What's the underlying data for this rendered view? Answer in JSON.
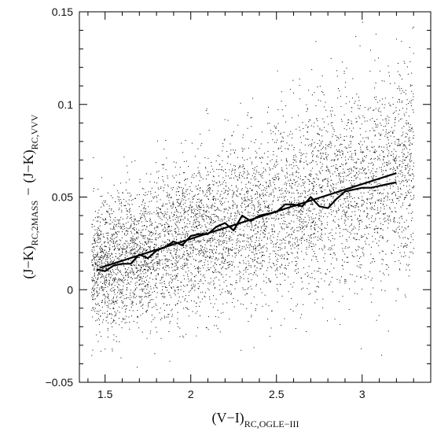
{
  "chart_data": {
    "type": "scatter",
    "xlabel": {
      "main": "(V−I)",
      "sub": "RC,OGLE−III"
    },
    "ylabel": {
      "minuend_main": "(J−K)",
      "minuend_sub": "RC,VVV",
      "operator": "−",
      "subtrahend_main": "(J−K)",
      "subtrahend_sub": "RC,2MASS"
    },
    "xlim": [
      1.35,
      3.4
    ],
    "ylim": [
      -0.05,
      0.15
    ],
    "x_ticks": [
      "1.5",
      "2",
      "2.5",
      "3"
    ],
    "x_tick_values": [
      1.5,
      2,
      2.5,
      3
    ],
    "y_ticks": [
      "−0.05",
      "0",
      "0.05",
      "0.1",
      "0.15"
    ],
    "y_tick_values": [
      -0.05,
      0,
      0.05,
      0.1,
      0.15
    ],
    "grid": false,
    "scatter_cloud": {
      "point_count": 6000,
      "x_range": [
        1.42,
        3.3
      ],
      "trend_intercept": -0.0292,
      "trend_slope": 0.0288,
      "scatter_sigma": 0.021
    },
    "series": [
      {
        "style": "straight-fit",
        "x": [
          1.47,
          3.2
        ],
        "y": [
          0.0118,
          0.0629
        ]
      },
      {
        "style": "binned-median",
        "x": [
          1.45,
          1.5,
          1.55,
          1.6,
          1.65,
          1.7,
          1.75,
          1.8,
          1.85,
          1.9,
          1.95,
          2.0,
          2.05,
          2.1,
          2.15,
          2.2,
          2.25,
          2.3,
          2.35,
          2.4,
          2.45,
          2.5,
          2.55,
          2.6,
          2.65,
          2.7,
          2.75,
          2.8,
          2.85,
          2.9,
          2.95,
          3.0,
          3.05,
          3.1,
          3.15,
          3.2
        ],
        "y": [
          0.011,
          0.01,
          0.013,
          0.014,
          0.014,
          0.019,
          0.017,
          0.021,
          0.023,
          0.026,
          0.024,
          0.029,
          0.03,
          0.03,
          0.034,
          0.036,
          0.032,
          0.04,
          0.037,
          0.04,
          0.041,
          0.042,
          0.046,
          0.046,
          0.045,
          0.05,
          0.045,
          0.044,
          0.049,
          0.053,
          0.054,
          0.055,
          0.055,
          0.056,
          0.057,
          0.058
        ]
      }
    ]
  }
}
